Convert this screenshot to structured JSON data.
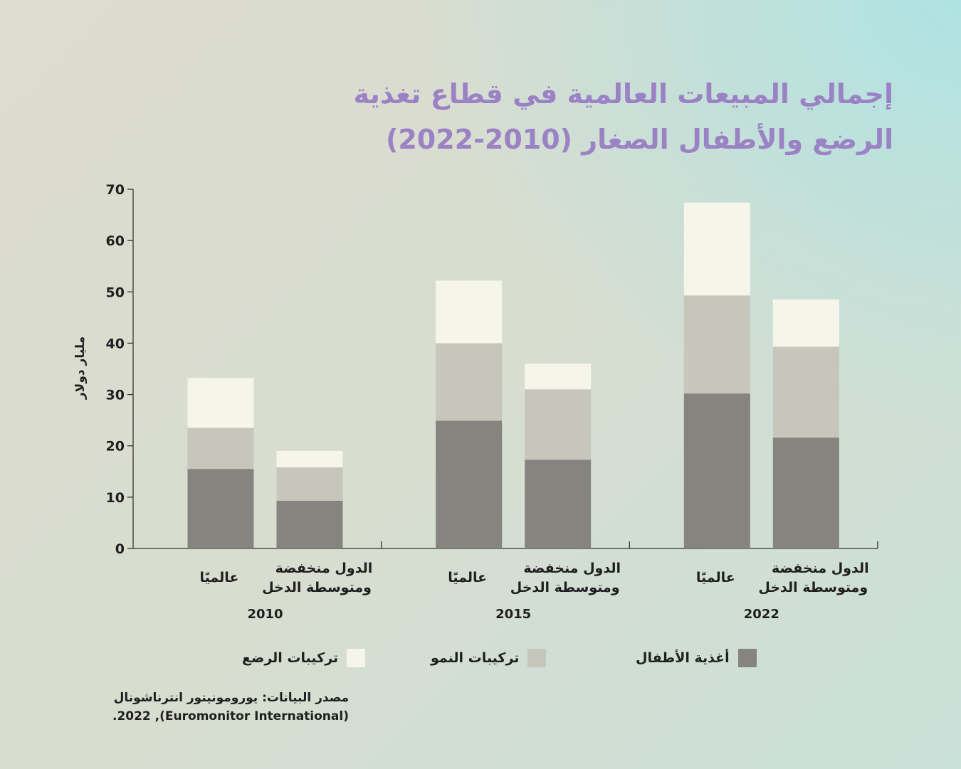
{
  "title": {
    "line1": "إجمالي المبيعات العالمية في قطاع تغذية",
    "line2": "الرضع والأطفال الصغار (2010-2022)"
  },
  "colors": {
    "title": "#9b82c4",
    "infant_food": "#85847e",
    "growing_up": "#c6c6bd",
    "infant_formula": "#f6f5ea"
  },
  "legend": {
    "infant_food": "أغذية الأطفال",
    "growing_up": "تركيبات النمو",
    "infant_formula": "تركيبات الرضع"
  },
  "source": {
    "line1": "مصدر البيانات: يورومونيتور انترناشونال",
    "line2": "(Euromonitor International), 2022."
  },
  "chart_data": {
    "type": "bar",
    "stacked": true,
    "ylabel": "مليار دولار",
    "ylim": [
      0,
      70
    ],
    "yticks": [
      "0",
      "10",
      "20",
      "30",
      "40",
      "50",
      "60",
      "70"
    ],
    "groups": [
      {
        "year": "2010",
        "bars": [
          {
            "label": "عالميًا",
            "values": [
              15.5,
              8,
              9.7
            ]
          },
          {
            "label": "الدول منخفضة ومتوسطة الدخل",
            "values": [
              9.3,
              6.5,
              3.2
            ]
          }
        ]
      },
      {
        "year": "2015",
        "bars": [
          {
            "label": "عالميًا",
            "values": [
              24.9,
              15.1,
              12.2
            ]
          },
          {
            "label": "الدول منخفضة ومتوسطة الدخل",
            "values": [
              17.3,
              13.7,
              5
            ]
          }
        ]
      },
      {
        "year": "2022",
        "bars": [
          {
            "label": "عالميًا",
            "values": [
              30.2,
              19.1,
              18.1
            ]
          },
          {
            "label": "الدول منخفضة ومتوسطة الدخل",
            "values": [
              21.6,
              17.7,
              9.2
            ]
          }
        ]
      }
    ],
    "series": [
      {
        "name": "أغذية الأطفال",
        "color_key": "infant_food"
      },
      {
        "name": "تركيبات النمو",
        "color_key": "growing_up"
      },
      {
        "name": "تركيبات الرضع",
        "color_key": "infant_formula"
      }
    ]
  }
}
